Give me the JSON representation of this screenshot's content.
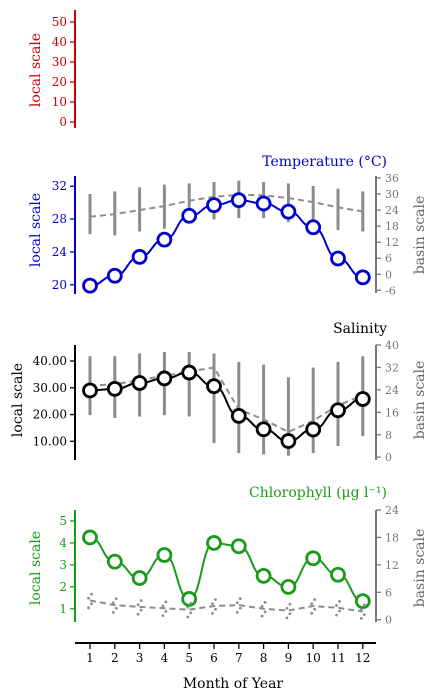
{
  "colors": {
    "empty_panel": "#cc0000",
    "temperature": "#0000cc",
    "salinity": "#000000",
    "chlorophyll": "#1a9a1a",
    "basin": "#8c8c8c"
  },
  "xaxis": {
    "label": "Month of Year",
    "ticks": [
      "1",
      "2",
      "3",
      "4",
      "5",
      "6",
      "7",
      "8",
      "9",
      "10",
      "11",
      "12"
    ]
  },
  "panels": [
    {
      "id": "empty",
      "title": "",
      "left_label": "local scale",
      "left_ticks": [
        "50",
        "40",
        "30",
        "20",
        "10",
        "0"
      ],
      "right_label": "",
      "right_ticks": []
    },
    {
      "id": "temperature",
      "title": "Temperature (°C)",
      "left_label": "local scale",
      "left_ticks": [
        "32",
        "28",
        "24",
        "20"
      ],
      "right_label": "basin scale",
      "right_ticks": [
        "36",
        "30",
        "24",
        "18",
        "12",
        "6",
        "0",
        "-6"
      ]
    },
    {
      "id": "salinity",
      "title": "Salinity",
      "left_label": "local scale",
      "left_ticks": [
        "40.00",
        "30.00",
        "20.00",
        "10.00"
      ],
      "right_label": "basin scale",
      "right_ticks": [
        "40",
        "32",
        "24",
        "16",
        "8",
        "0"
      ]
    },
    {
      "id": "chlorophyll",
      "title": "Chlorophyll (μg l⁻¹)",
      "left_label": "local scale",
      "left_ticks": [
        "5",
        "4",
        "3",
        "2",
        "1"
      ],
      "right_label": "basin scale",
      "right_ticks": [
        "24",
        "18",
        "12",
        "6",
        "0"
      ]
    }
  ],
  "chart_data": [
    {
      "type": "line",
      "title": "",
      "ylabel": "local scale",
      "ylim": [
        -3,
        56
      ],
      "x": [],
      "series": []
    },
    {
      "type": "line",
      "title": "Temperature (°C)",
      "xlabel": "Month of Year",
      "ylabel": "local scale",
      "ylim": [
        19,
        33
      ],
      "y2label": "basin scale",
      "y2lim": [
        -7,
        36
      ],
      "x": [
        1,
        2,
        3,
        4,
        5,
        6,
        7,
        8,
        9,
        10,
        11,
        12
      ],
      "series": [
        {
          "axis": "local",
          "values": [
            19.9,
            21.1,
            23.4,
            25.5,
            28.4,
            29.7,
            30.3,
            29.9,
            28.9,
            27.0,
            23.2,
            20.9
          ]
        },
        {
          "axis": "basin",
          "style": "dashed",
          "values": [
            21.5,
            22.5,
            24,
            25.5,
            27.5,
            29,
            29.7,
            29.5,
            28.5,
            27,
            25,
            23.5
          ]
        },
        {
          "axis": "basin",
          "style": "range",
          "low": [
            15,
            14.5,
            16,
            17,
            19,
            20.5,
            21,
            21,
            19.5,
            17.5,
            16.5,
            16
          ],
          "high": [
            30,
            31,
            32.5,
            33.5,
            34,
            34.5,
            35,
            34.5,
            34,
            33,
            32,
            31
          ]
        }
      ]
    },
    {
      "type": "line",
      "title": "Salinity",
      "xlabel": "Month of Year",
      "ylabel": "local scale",
      "ylim": [
        3,
        46
      ],
      "y2label": "basin scale",
      "y2lim": [
        -1,
        40
      ],
      "x": [
        1,
        2,
        3,
        4,
        5,
        6,
        7,
        8,
        9,
        10,
        11,
        12
      ],
      "series": [
        {
          "axis": "local",
          "values": [
            29.0,
            29.6,
            31.8,
            33.5,
            35.7,
            30.6,
            19.5,
            14.5,
            10.1,
            14.4,
            21.6,
            25.8
          ]
        },
        {
          "axis": "basin",
          "style": "dashed",
          "values": [
            25.5,
            26,
            27.5,
            29,
            30.5,
            32,
            17,
            13.5,
            9,
            13,
            18.5,
            22
          ]
        },
        {
          "axis": "basin",
          "style": "range",
          "low": [
            15,
            14,
            14.5,
            15,
            14.5,
            5,
            1.5,
            1,
            0.5,
            1.5,
            4,
            7.5
          ],
          "high": [
            36,
            36,
            37,
            37.5,
            37.5,
            37,
            34,
            33,
            28.5,
            32,
            34,
            36
          ]
        }
      ]
    },
    {
      "type": "line",
      "title": "Chlorophyll (μg l⁻¹)",
      "xlabel": "Month of Year",
      "ylabel": "local scale",
      "ylim": [
        0.4,
        5.5
      ],
      "y2label": "basin scale",
      "y2lim": [
        -0.5,
        24
      ],
      "x": [
        1,
        2,
        3,
        4,
        5,
        6,
        7,
        8,
        9,
        10,
        11,
        12
      ],
      "series": [
        {
          "axis": "local",
          "values": [
            4.25,
            3.15,
            2.4,
            3.45,
            1.45,
            4.0,
            3.85,
            2.5,
            2.0,
            3.3,
            2.55,
            1.35
          ]
        },
        {
          "axis": "basin",
          "style": "dashed",
          "values": [
            4.2,
            3.2,
            2.8,
            2.5,
            2.2,
            3.0,
            3.2,
            2.4,
            2.0,
            3.0,
            2.6,
            1.8
          ]
        }
      ]
    }
  ]
}
